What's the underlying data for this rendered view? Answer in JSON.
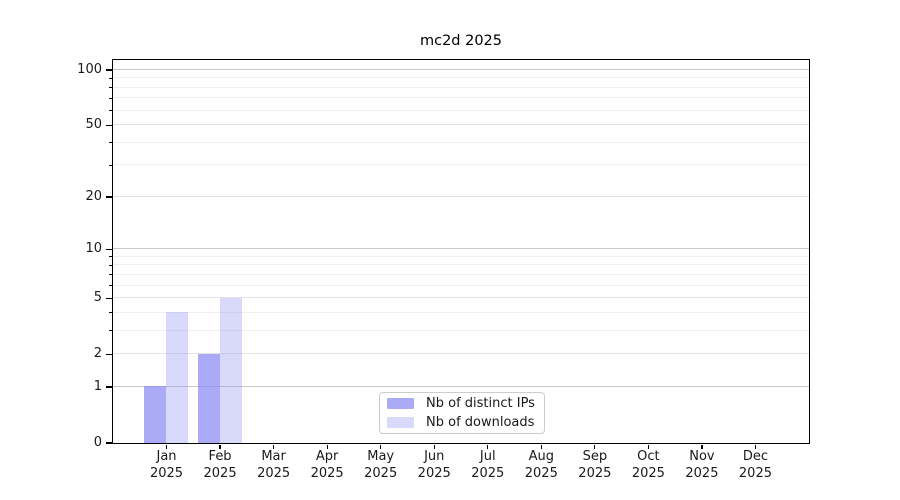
{
  "chart_data": {
    "type": "bar",
    "title": "mc2d 2025",
    "categories": [
      "Jan",
      "Feb",
      "Mar",
      "Apr",
      "May",
      "Jun",
      "Jul",
      "Aug",
      "Sep",
      "Oct",
      "Nov",
      "Dec"
    ],
    "category_year": "2025",
    "series": [
      {
        "name": "Nb of distinct IPs",
        "color": "rgba(137,137,242,0.72)",
        "values": [
          1,
          2,
          0,
          0,
          0,
          0,
          0,
          0,
          0,
          0,
          0,
          0
        ]
      },
      {
        "name": "Nb of downloads",
        "color": "rgba(137,137,242,0.32)",
        "values": [
          4,
          5,
          0,
          0,
          0,
          0,
          0,
          0,
          0,
          0,
          0,
          0
        ]
      }
    ],
    "xlabel": "",
    "ylabel": "",
    "y_scale": "log1p",
    "ylim": [
      0,
      100
    ],
    "y_labeled_ticks": [
      0,
      1,
      2,
      5,
      10,
      20,
      50,
      100
    ],
    "y_decade_ticks": [
      1,
      10,
      100
    ],
    "y_minor_ticks": [
      3,
      4,
      6,
      7,
      8,
      9,
      30,
      40,
      60,
      70,
      80,
      90
    ],
    "grid": "horizontal",
    "legend_position": "lower center"
  },
  "style": {
    "background": "#ffffff",
    "axis_color": "#000000",
    "text_color": "#1a1a1a",
    "grid_decade_color": "#c8c8c8",
    "grid_labeled_color": "#e3e3e3",
    "grid_minor_color": "#efefef",
    "legend_border_color": "#cccccc",
    "legend_background": "#ffffff"
  }
}
